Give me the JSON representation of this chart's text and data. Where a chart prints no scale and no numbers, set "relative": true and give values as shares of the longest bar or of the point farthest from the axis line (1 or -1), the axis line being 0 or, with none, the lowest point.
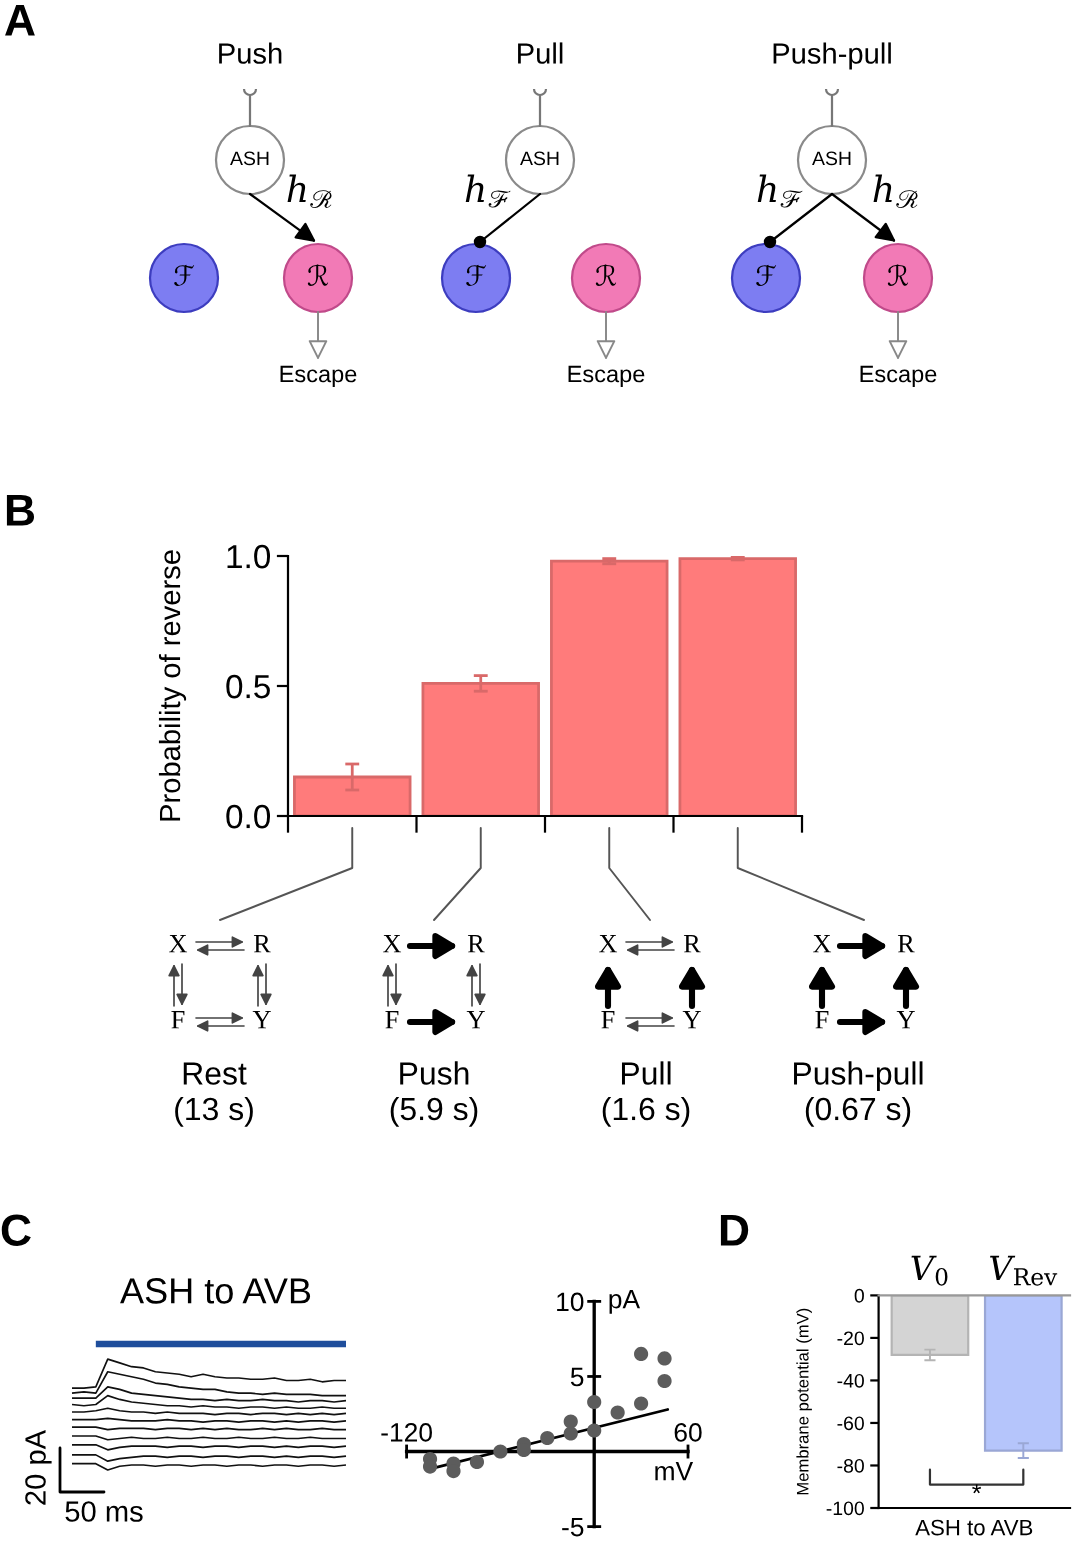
{
  "chart_data": [
    {
      "type": "other",
      "title": "A",
      "annotations": [
        "Push",
        "Pull",
        "Push-pull",
        "ASH",
        "ASH",
        "ASH",
        "h$_{ℛ}$",
        "h$_{ℱ}$",
        "h$_{ℱ}$",
        "h$_{ℛ}$",
        "ℱ",
        "ℛ",
        "ℱ",
        "ℛ",
        "ℱ",
        "ℛ",
        "Escape",
        "Escape",
        "Escape"
      ]
    },
    {
      "type": "bar",
      "title": "B",
      "ylabel": "Probability of reverse",
      "categories": [
        null,
        null,
        null,
        null
      ],
      "values": [
        0.15,
        0.51,
        0.98,
        0.99
      ],
      "errors": [
        0.05,
        0.03,
        0.01,
        0.005
      ],
      "color": "#ff7b7b",
      "ylim": [
        0,
        1
      ],
      "yticks": [
        {
          "value": 0,
          "label": "0.0"
        },
        {
          "value": 0.5,
          "label": "0.5"
        },
        {
          "value": 1,
          "label": "1.0"
        }
      ],
      "annotations": [
        "X",
        "R",
        "F",
        "Y",
        "X",
        "R",
        "F",
        "Y",
        "X",
        "R",
        "F",
        "Y",
        "X",
        "R",
        "F",
        "Y",
        "Rest\n(13 s)",
        "Push\n(5.9 s)",
        "Pull\n(1.6 s)",
        "Push-pull\n(0.67 s)"
      ]
    },
    {
      "type": "line",
      "title": "C",
      "subtitle": "ASH to AVB",
      "relative": true,
      "categories": [
        null,
        null,
        null,
        null,
        null,
        null,
        null,
        null,
        null,
        null,
        null,
        null,
        null,
        null,
        null,
        null,
        null,
        null,
        null,
        null,
        null,
        null,
        null,
        null
      ],
      "annotations": [
        "20 pA",
        "50 ms"
      ],
      "series": [
        {
          "color": "#1f4e9c",
          "values": [
            null,
            null,
            1,
            1,
            1,
            1,
            1,
            1,
            1,
            1,
            1,
            1,
            1,
            1,
            1,
            1,
            1,
            1,
            1,
            1,
            1,
            1,
            1,
            1
          ]
        },
        {
          "color": "#111111",
          "values": [
            0.65,
            0.65,
            0.66,
            0.88,
            0.85,
            0.82,
            0.81,
            0.78,
            0.77,
            0.76,
            0.74,
            0.76,
            0.74,
            0.73,
            0.73,
            0.72,
            0.72,
            0.73,
            0.71,
            0.71,
            0.72,
            0.7,
            0.71,
            0.71
          ]
        },
        {
          "color": "#111111",
          "values": [
            0.61,
            0.62,
            0.61,
            0.78,
            0.76,
            0.74,
            0.72,
            0.69,
            0.68,
            0.66,
            0.65,
            0.64,
            0.64,
            0.62,
            0.61,
            0.61,
            0.6,
            0.61,
            0.6,
            0.6,
            0.6,
            0.59,
            0.59,
            0.59
          ]
        },
        {
          "color": "#111111",
          "values": [
            0.57,
            0.57,
            0.57,
            0.66,
            0.64,
            0.61,
            0.6,
            0.59,
            0.58,
            0.57,
            0.56,
            0.56,
            0.55,
            0.56,
            0.55,
            0.55,
            0.56,
            0.55,
            0.55,
            0.54,
            0.55,
            0.55,
            0.54,
            0.55
          ]
        },
        {
          "color": "#111111",
          "values": [
            0.52,
            0.51,
            0.52,
            0.59,
            0.56,
            0.54,
            0.53,
            0.52,
            0.51,
            0.51,
            0.5,
            0.51,
            0.5,
            0.5,
            0.49,
            0.5,
            0.5,
            0.49,
            0.5,
            0.49,
            0.49,
            0.5,
            0.49,
            0.49
          ]
        },
        {
          "color": "#111111",
          "values": [
            0.46,
            0.46,
            0.47,
            0.49,
            0.47,
            0.46,
            0.46,
            0.45,
            0.46,
            0.45,
            0.45,
            0.45,
            0.44,
            0.45,
            0.45,
            0.44,
            0.45,
            0.45,
            0.44,
            0.45,
            0.44,
            0.45,
            0.44,
            0.45
          ]
        },
        {
          "color": "#111111",
          "values": [
            0.4,
            0.4,
            0.4,
            0.41,
            0.4,
            0.39,
            0.39,
            0.39,
            0.4,
            0.39,
            0.39,
            0.38,
            0.39,
            0.39,
            0.38,
            0.39,
            0.39,
            0.38,
            0.39,
            0.38,
            0.39,
            0.39,
            0.38,
            0.39
          ]
        },
        {
          "color": "#111111",
          "values": [
            0.34,
            0.34,
            0.34,
            0.32,
            0.33,
            0.33,
            0.33,
            0.32,
            0.33,
            0.33,
            0.32,
            0.33,
            0.32,
            0.33,
            0.32,
            0.32,
            0.33,
            0.32,
            0.33,
            0.32,
            0.32,
            0.33,
            0.32,
            0.32
          ]
        },
        {
          "color": "#111111",
          "values": [
            0.27,
            0.27,
            0.27,
            0.24,
            0.25,
            0.26,
            0.25,
            0.25,
            0.26,
            0.25,
            0.25,
            0.26,
            0.25,
            0.25,
            0.26,
            0.25,
            0.25,
            0.26,
            0.25,
            0.25,
            0.26,
            0.25,
            0.25,
            0.25
          ]
        },
        {
          "color": "#111111",
          "values": [
            0.2,
            0.2,
            0.2,
            0.16,
            0.18,
            0.19,
            0.19,
            0.19,
            0.18,
            0.19,
            0.19,
            0.18,
            0.19,
            0.19,
            0.18,
            0.19,
            0.19,
            0.18,
            0.19,
            0.18,
            0.19,
            0.19,
            0.18,
            0.19
          ]
        },
        {
          "color": "#111111",
          "values": [
            0.12,
            0.12,
            0.12,
            0.07,
            0.09,
            0.1,
            0.11,
            0.11,
            0.1,
            0.11,
            0.11,
            0.1,
            0.11,
            0.11,
            0.1,
            0.11,
            0.11,
            0.1,
            0.11,
            0.1,
            0.11,
            0.11,
            0.1,
            0.11
          ]
        },
        {
          "color": "#111111",
          "values": [
            0.05,
            0.05,
            0.05,
            0.0,
            0.03,
            0.04,
            0.04,
            0.03,
            0.04,
            0.04,
            0.03,
            0.04,
            0.04,
            0.03,
            0.04,
            0.04,
            0.03,
            0.04,
            0.04,
            0.03,
            0.04,
            0.04,
            0.03,
            0.04
          ]
        }
      ]
    },
    {
      "type": "scatter",
      "xlabel": "mV",
      "ylabel": "pA",
      "xlim": [
        -120,
        60
      ],
      "ylim": [
        -5,
        10
      ],
      "xticks": [
        -120,
        60
      ],
      "yticks": [
        -5,
        5,
        10
      ],
      "series": [
        {
          "type": "scatter",
          "marker": "circle",
          "color": "#5c5c5c",
          "x": [
            -105,
            -105,
            -90,
            -90,
            -75,
            -60,
            -45,
            -45,
            -30,
            -15,
            -15,
            0,
            0,
            15,
            30,
            30,
            45,
            45
          ],
          "values": [
            -0.5,
            -1.0,
            -0.8,
            -1.3,
            -0.7,
            0.0,
            0.5,
            0.1,
            0.9,
            2.0,
            1.2,
            3.3,
            1.4,
            2.6,
            6.5,
            3.2,
            6.2,
            4.7
          ]
        },
        {
          "type": "line",
          "color": "#000000",
          "x": [
            -103,
            47
          ],
          "values": [
            -1.1,
            2.8
          ]
        }
      ]
    },
    {
      "type": "bar",
      "title": "D",
      "xlabel": "ASH to AVB",
      "ylabel": "Membrane potential (mV)",
      "categories": [
        "V$_{0}$",
        "V$_{Rev}$"
      ],
      "values": [
        -28,
        -73
      ],
      "errors": [
        2.5,
        3.5
      ],
      "colors": [
        "#d4d4d4",
        "#b5c5fb"
      ],
      "ylim": [
        -100,
        0
      ],
      "yticks": [
        -100,
        -80,
        -60,
        -40,
        -20,
        0
      ],
      "annotations": [
        "*"
      ]
    }
  ]
}
